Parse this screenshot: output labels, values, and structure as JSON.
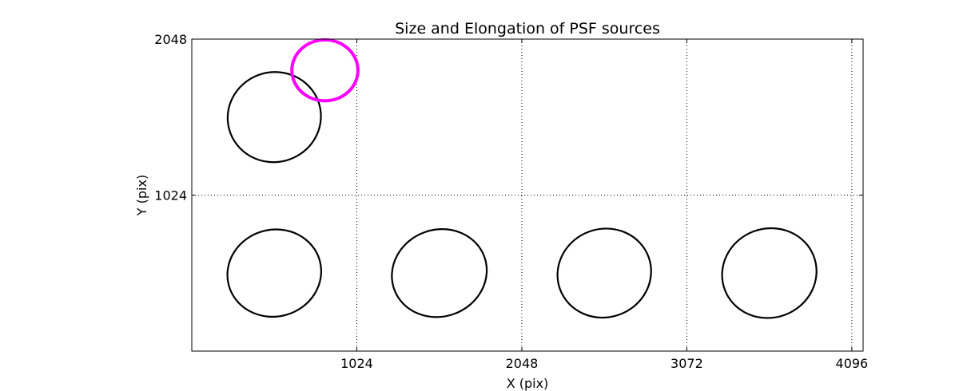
{
  "chart_data": {
    "type": "scatter",
    "title": "Size and Elongation of PSF sources",
    "xlabel": "X (pix)",
    "ylabel": "Y (pix)",
    "xlim": [
      0,
      4166
    ],
    "ylim": [
      0,
      2048
    ],
    "grid": true,
    "x_ticks": [
      1024,
      2048,
      3072,
      4096
    ],
    "y_ticks": [
      1024,
      2048
    ],
    "x_tick_labels": [
      "1024",
      "2048",
      "3072",
      "4096"
    ],
    "y_tick_labels": [
      "1024",
      "2048"
    ],
    "colors": {
      "normal": "#000000",
      "highlight": "#ff00ff"
    },
    "sources": [
      {
        "x": 512,
        "y": 1536,
        "width": 580,
        "height": 590,
        "angle": 15,
        "highlight": false
      },
      {
        "x": 512,
        "y": 512,
        "width": 585,
        "height": 570,
        "angle": 15,
        "highlight": false
      },
      {
        "x": 1536,
        "y": 512,
        "width": 595,
        "height": 570,
        "angle": 20,
        "highlight": false
      },
      {
        "x": 2560,
        "y": 512,
        "width": 585,
        "height": 580,
        "angle": 20,
        "highlight": false
      },
      {
        "x": 3584,
        "y": 512,
        "width": 590,
        "height": 585,
        "angle": 20,
        "highlight": false
      },
      {
        "x": 826,
        "y": 1843,
        "width": 410,
        "height": 400,
        "angle": 0,
        "highlight": true
      }
    ]
  }
}
